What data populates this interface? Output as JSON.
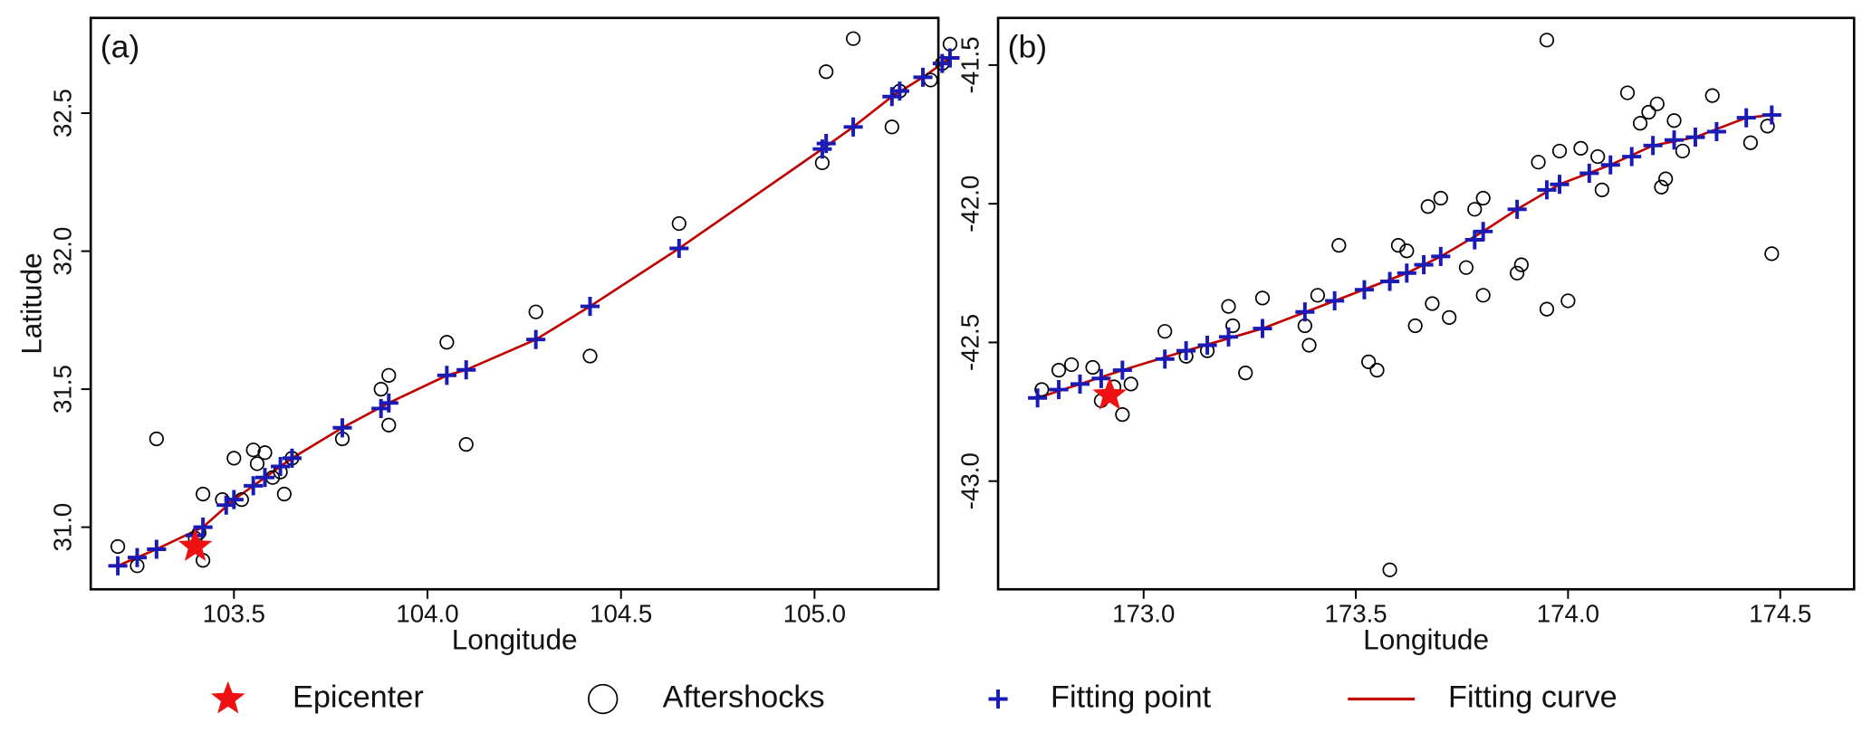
{
  "chart_data": [
    {
      "type": "scatter",
      "label": "(a)",
      "x_label": "Longitude",
      "y_label": "Latitude",
      "xlim": [
        103.13,
        105.32
      ],
      "ylim": [
        30.775,
        32.845
      ],
      "xticks": [
        103.5,
        {
          "value": 104,
          "label": "104.0"
        },
        104.5,
        {
          "value": 105,
          "label": "105.0"
        }
      ],
      "yticks": [
        {
          "value": 31,
          "label": "31.0"
        },
        31.5,
        {
          "value": 32,
          "label": "32.0"
        },
        32.5
      ],
      "series": [
        {
          "name": "Epicenter",
          "color": "#ee1111",
          "marker": "star",
          "x": [
            103.4
          ],
          "y": [
            30.93
          ]
        },
        {
          "name": "Aftershocks",
          "color": "#000000",
          "marker": "circle",
          "x": [
            103.2,
            103.25,
            103.3,
            103.4,
            103.41,
            103.42,
            103.42,
            103.47,
            103.5,
            103.52,
            103.55,
            103.56,
            103.58,
            103.6,
            103.62,
            103.63,
            103.65,
            103.78,
            103.88,
            103.9,
            103.9,
            104.05,
            104.1,
            104.28,
            104.42,
            104.65,
            105.02,
            105.03,
            105.1,
            105.2,
            105.22,
            105.3,
            105.33,
            105.35
          ],
          "y": [
            30.93,
            30.86,
            31.32,
            30.96,
            30.98,
            30.88,
            31.12,
            31.1,
            31.25,
            31.1,
            31.28,
            31.23,
            31.27,
            31.18,
            31.2,
            31.12,
            31.25,
            31.32,
            31.5,
            31.55,
            31.37,
            31.67,
            31.3,
            31.78,
            31.62,
            32.1,
            32.32,
            32.65,
            32.77,
            32.45,
            32.58,
            32.62,
            32.68,
            32.75
          ]
        },
        {
          "name": "Fitting point",
          "color": "#1a1ab4",
          "marker": "plus",
          "x": [
            103.2,
            103.25,
            103.3,
            103.4,
            103.42,
            103.48,
            103.5,
            103.55,
            103.58,
            103.62,
            103.65,
            103.78,
            103.88,
            103.9,
            104.05,
            104.1,
            104.28,
            104.42,
            104.65,
            105.02,
            105.03,
            105.1,
            105.2,
            105.22,
            105.28,
            105.33,
            105.35
          ],
          "y": [
            30.86,
            30.89,
            30.92,
            30.97,
            31.0,
            31.08,
            31.1,
            31.15,
            31.18,
            31.22,
            31.25,
            31.36,
            31.43,
            31.45,
            31.55,
            31.57,
            31.68,
            31.8,
            32.01,
            32.37,
            32.39,
            32.45,
            32.56,
            32.58,
            32.63,
            32.68,
            32.7
          ]
        },
        {
          "name": "Fitting curve",
          "color": "#c00000",
          "marker": "line",
          "x": [
            103.2,
            103.3,
            103.42,
            103.5,
            103.65,
            103.78,
            103.9,
            104.05,
            104.1,
            104.28,
            104.42,
            104.65,
            105.02,
            105.1,
            105.2,
            105.28,
            105.35
          ],
          "y": [
            30.86,
            30.92,
            31.0,
            31.1,
            31.25,
            31.36,
            31.45,
            31.55,
            31.57,
            31.68,
            31.8,
            32.01,
            32.37,
            32.45,
            32.56,
            32.63,
            32.7
          ]
        }
      ]
    },
    {
      "type": "scatter",
      "label": "(b)",
      "x_label": "Longitude",
      "xlim": [
        172.657,
        174.674
      ],
      "ylim": [
        -43.39,
        -41.33
      ],
      "xticks": [
        {
          "value": 173,
          "label": "173.0"
        },
        173.5,
        {
          "value": 174,
          "label": "174.0"
        },
        174.5
      ],
      "yticks": [
        -41.5,
        {
          "value": -42,
          "label": "-42.0"
        },
        -42.5,
        {
          "value": -43,
          "label": "-43.0"
        }
      ],
      "series": [
        {
          "name": "Epicenter",
          "color": "#ee1111",
          "marker": "star",
          "x": [
            172.92
          ],
          "y": [
            -42.69
          ]
        },
        {
          "name": "Aftershocks",
          "color": "#000000",
          "marker": "circle",
          "x": [
            172.76,
            172.8,
            172.83,
            172.88,
            172.9,
            172.93,
            172.95,
            172.97,
            173.05,
            173.1,
            173.15,
            173.2,
            173.21,
            173.24,
            173.28,
            173.38,
            173.39,
            173.41,
            173.46,
            173.53,
            173.55,
            173.6,
            173.62,
            173.64,
            173.67,
            173.68,
            173.7,
            173.72,
            173.76,
            173.78,
            173.8,
            173.8,
            173.88,
            173.89,
            173.93,
            173.95,
            173.98,
            174.0,
            174.03,
            174.07,
            174.08,
            174.14,
            174.17,
            174.19,
            174.21,
            174.22,
            174.23,
            174.25,
            174.27,
            174.34,
            174.43,
            174.47,
            174.48,
            173.95,
            173.58
          ],
          "y": [
            -42.67,
            -42.6,
            -42.58,
            -42.59,
            -42.71,
            -42.66,
            -42.76,
            -42.65,
            -42.46,
            -42.55,
            -42.53,
            -42.37,
            -42.44,
            -42.61,
            -42.34,
            -42.44,
            -42.51,
            -42.33,
            -42.15,
            -42.57,
            -42.6,
            -42.15,
            -42.17,
            -42.44,
            -42.01,
            -42.36,
            -41.98,
            -42.41,
            -42.23,
            -42.02,
            -41.98,
            -42.33,
            -42.25,
            -42.22,
            -41.85,
            -42.38,
            -41.81,
            -42.35,
            -41.8,
            -41.83,
            -41.95,
            -41.6,
            -41.71,
            -41.67,
            -41.64,
            -41.94,
            -41.91,
            -41.7,
            -41.81,
            -41.61,
            -41.78,
            -41.72,
            -42.18,
            -41.41,
            -43.32
          ]
        },
        {
          "name": "Fitting point",
          "color": "#1a1ab4",
          "marker": "plus",
          "x": [
            172.75,
            172.8,
            172.85,
            172.9,
            172.95,
            173.05,
            173.1,
            173.15,
            173.2,
            173.28,
            173.38,
            173.45,
            173.52,
            173.58,
            173.62,
            173.66,
            173.7,
            173.78,
            173.8,
            173.88,
            173.95,
            173.98,
            174.05,
            174.1,
            174.15,
            174.2,
            174.25,
            174.3,
            174.35,
            174.42,
            174.48
          ],
          "y": [
            -42.7,
            -42.67,
            -42.65,
            -42.63,
            -42.6,
            -42.56,
            -42.53,
            -42.51,
            -42.48,
            -42.45,
            -42.39,
            -42.35,
            -42.31,
            -42.28,
            -42.25,
            -42.22,
            -42.19,
            -42.13,
            -42.1,
            -42.02,
            -41.95,
            -41.93,
            -41.89,
            -41.86,
            -41.83,
            -41.79,
            -41.77,
            -41.76,
            -41.74,
            -41.69,
            -41.68
          ]
        },
        {
          "name": "Fitting curve",
          "color": "#c00000",
          "marker": "line",
          "x": [
            172.75,
            172.95,
            173.1,
            173.28,
            173.45,
            173.62,
            173.7,
            173.8,
            173.88,
            173.98,
            174.1,
            174.2,
            174.3,
            174.42,
            174.48
          ],
          "y": [
            -42.7,
            -42.6,
            -42.53,
            -42.45,
            -42.35,
            -42.25,
            -42.19,
            -42.1,
            -42.02,
            -41.93,
            -41.86,
            -41.79,
            -41.76,
            -41.69,
            -41.68
          ]
        }
      ]
    }
  ]
}
